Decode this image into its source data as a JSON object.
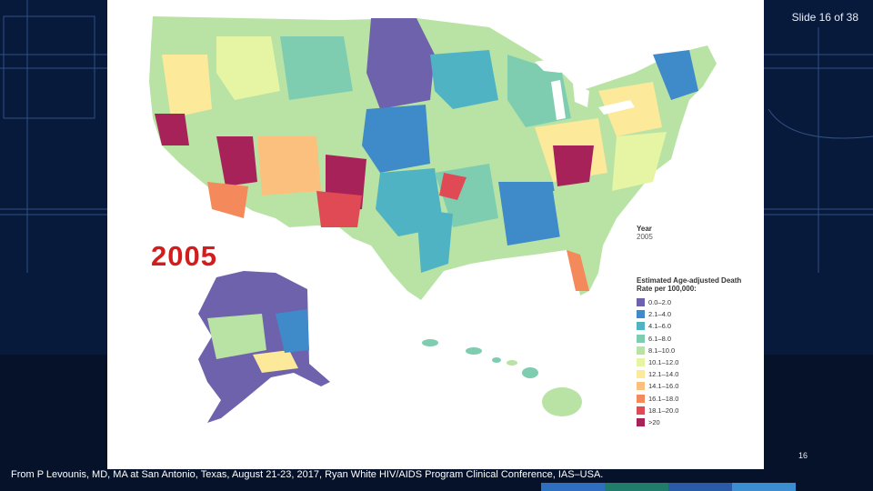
{
  "slide": {
    "counter": "Slide 16 of 38",
    "page_number": "16",
    "credit": "From P Levounis, MD, MA at San Antonio, Texas, August 21-23, 2017, Ryan White HIV/AIDS Program Clinical Conference, IAS–USA."
  },
  "map": {
    "year_overlay": "2005",
    "year_caption_label": "Year",
    "year_caption_value": "2005",
    "legend_title": "Estimated Age-adjusted Death Rate per 100,000:",
    "legend": [
      {
        "label": "0.0–2.0",
        "color": "#6f62ad"
      },
      {
        "label": "2.1–4.0",
        "color": "#3f8ac8"
      },
      {
        "label": "4.1–6.0",
        "color": "#4fb3c4"
      },
      {
        "label": "6.1–8.0",
        "color": "#7fcdb0"
      },
      {
        "label": "8.1–10.0",
        "color": "#b8e3a4"
      },
      {
        "label": "10.1–12.0",
        "color": "#e6f5a3"
      },
      {
        "label": "12.1–14.0",
        "color": "#fde99a"
      },
      {
        "label": "14.1–16.0",
        "color": "#fcc07e"
      },
      {
        "label": "16.1–18.0",
        "color": "#f48a5c"
      },
      {
        "label": "18.1–20.0",
        "color": "#e04a55"
      },
      {
        "label": ">20",
        "color": "#a8225a"
      }
    ]
  },
  "colors": {
    "background": "#05122a",
    "accent_red": "#d31c1c"
  }
}
